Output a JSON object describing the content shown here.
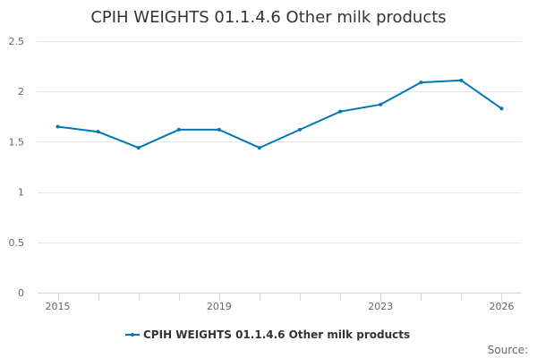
{
  "chart_data": {
    "type": "line",
    "title": "CPIH WEIGHTS 01.1.4.6 Other milk products",
    "xlabel": "",
    "ylabel": "",
    "x": [
      2015,
      2016,
      2017,
      2018,
      2019,
      2020,
      2021,
      2022,
      2023,
      2024,
      2025,
      2026
    ],
    "x_tick_labels": [
      "2015",
      "2019",
      "2023",
      "2026"
    ],
    "x_tick_values": [
      2015,
      2019,
      2023,
      2026
    ],
    "y_tick_labels": [
      "0",
      "0.5",
      "1",
      "1.5",
      "2",
      "2.5"
    ],
    "y_tick_values": [
      0,
      0.5,
      1,
      1.5,
      2,
      2.5
    ],
    "ylim": [
      0,
      2.5
    ],
    "grid": true,
    "legend_position": "bottom-center",
    "series": [
      {
        "name": "CPIH WEIGHTS 01.1.4.6 Other milk products",
        "color": "#0077b6",
        "values": [
          1.65,
          1.6,
          1.44,
          1.62,
          1.62,
          1.44,
          1.62,
          1.8,
          1.87,
          2.09,
          2.11,
          1.83
        ]
      }
    ],
    "credits": "Source:"
  }
}
